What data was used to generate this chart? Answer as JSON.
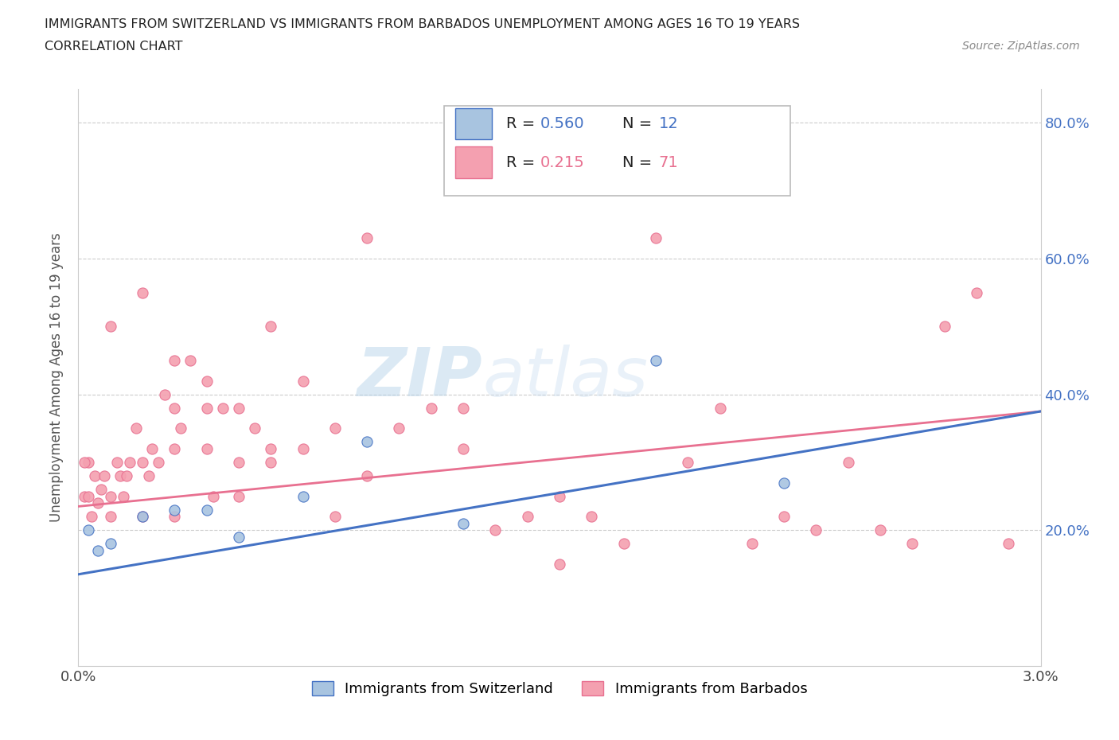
{
  "title_line1": "IMMIGRANTS FROM SWITZERLAND VS IMMIGRANTS FROM BARBADOS UNEMPLOYMENT AMONG AGES 16 TO 19 YEARS",
  "title_line2": "CORRELATION CHART",
  "source_text": "Source: ZipAtlas.com",
  "ylabel": "Unemployment Among Ages 16 to 19 years",
  "xlim": [
    0.0,
    0.03
  ],
  "ylim": [
    0.0,
    0.85
  ],
  "xticks": [
    0.0,
    0.005,
    0.01,
    0.015,
    0.02,
    0.025,
    0.03
  ],
  "xticklabels": [
    "0.0%",
    "",
    "",
    "",
    "",
    "",
    "3.0%"
  ],
  "yticks": [
    0.0,
    0.2,
    0.4,
    0.6,
    0.8
  ],
  "yticklabels": [
    "",
    "20.0%",
    "40.0%",
    "60.0%",
    "80.0%"
  ],
  "hlines": [
    0.2,
    0.4,
    0.6,
    0.8
  ],
  "swiss_color": "#a8c4e0",
  "barbados_color": "#f4a0b0",
  "swiss_line_color": "#4472c4",
  "barbados_line_color": "#e87090",
  "watermark": "ZIPatlas",
  "legend_r_swiss": "0.560",
  "legend_n_swiss": "12",
  "legend_r_barbados": "0.215",
  "legend_n_barbados": "71",
  "swiss_scatter_x": [
    0.0003,
    0.0006,
    0.001,
    0.002,
    0.003,
    0.004,
    0.005,
    0.007,
    0.009,
    0.012,
    0.018,
    0.022
  ],
  "swiss_scatter_y": [
    0.2,
    0.17,
    0.18,
    0.22,
    0.23,
    0.23,
    0.19,
    0.25,
    0.33,
    0.21,
    0.45,
    0.27
  ],
  "barbados_scatter_x": [
    0.0002,
    0.0003,
    0.0004,
    0.0005,
    0.0006,
    0.0007,
    0.0008,
    0.001,
    0.001,
    0.0012,
    0.0013,
    0.0014,
    0.0015,
    0.0016,
    0.0018,
    0.002,
    0.002,
    0.0022,
    0.0023,
    0.0025,
    0.0027,
    0.003,
    0.003,
    0.003,
    0.0032,
    0.0035,
    0.004,
    0.004,
    0.0042,
    0.0045,
    0.005,
    0.005,
    0.005,
    0.0055,
    0.006,
    0.006,
    0.007,
    0.007,
    0.008,
    0.009,
    0.009,
    0.01,
    0.011,
    0.012,
    0.013,
    0.014,
    0.015,
    0.015,
    0.016,
    0.017,
    0.018,
    0.019,
    0.02,
    0.021,
    0.022,
    0.023,
    0.024,
    0.025,
    0.026,
    0.027,
    0.028,
    0.029,
    0.0002,
    0.0003,
    0.001,
    0.002,
    0.003,
    0.004,
    0.006,
    0.008,
    0.012
  ],
  "barbados_scatter_y": [
    0.25,
    0.3,
    0.22,
    0.28,
    0.24,
    0.26,
    0.28,
    0.25,
    0.22,
    0.3,
    0.28,
    0.25,
    0.28,
    0.3,
    0.35,
    0.3,
    0.22,
    0.28,
    0.32,
    0.3,
    0.4,
    0.32,
    0.38,
    0.22,
    0.35,
    0.45,
    0.42,
    0.32,
    0.25,
    0.38,
    0.3,
    0.38,
    0.25,
    0.35,
    0.32,
    0.5,
    0.42,
    0.32,
    0.35,
    0.63,
    0.28,
    0.35,
    0.38,
    0.32,
    0.2,
    0.22,
    0.25,
    0.15,
    0.22,
    0.18,
    0.63,
    0.3,
    0.38,
    0.18,
    0.22,
    0.2,
    0.3,
    0.2,
    0.18,
    0.5,
    0.55,
    0.18,
    0.3,
    0.25,
    0.5,
    0.55,
    0.45,
    0.38,
    0.3,
    0.22,
    0.38
  ],
  "swiss_trendline_x": [
    0.0,
    0.03
  ],
  "swiss_trendline_y": [
    0.135,
    0.375
  ],
  "barbados_trendline_x": [
    0.0,
    0.03
  ],
  "barbados_trendline_y": [
    0.235,
    0.375
  ]
}
